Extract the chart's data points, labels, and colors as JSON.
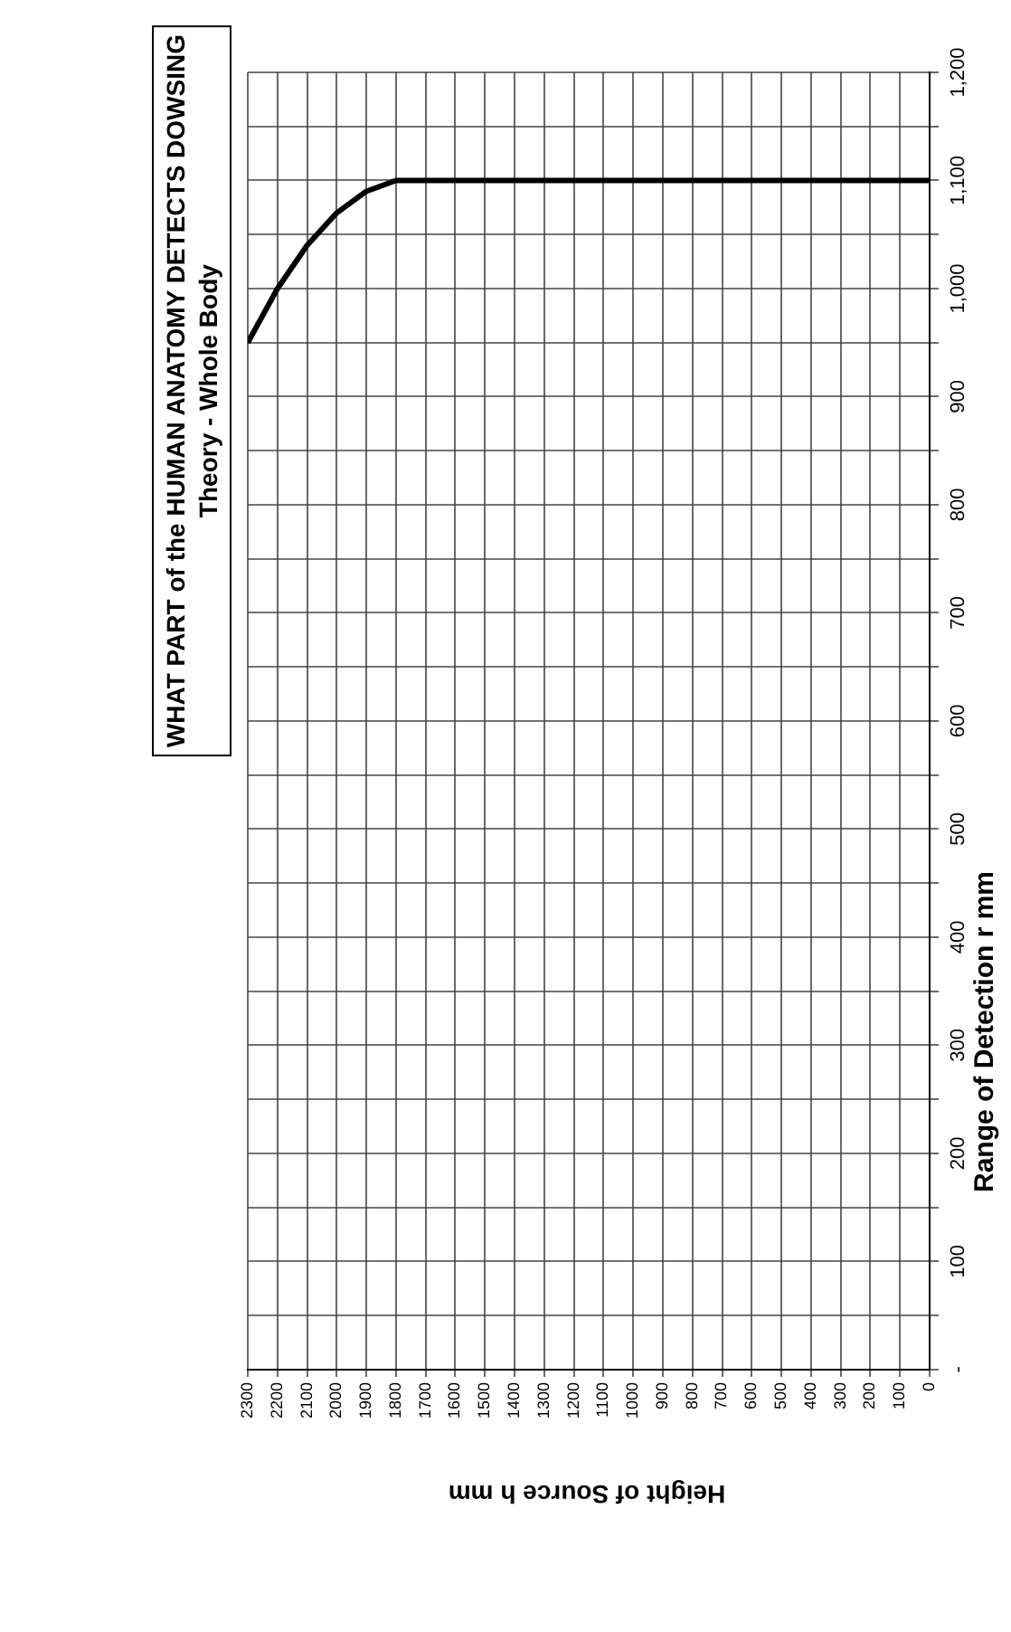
{
  "chart_data": {
    "type": "line",
    "title": "WHAT PART of the HUMAN ANATOMY DETECTS DOWSING",
    "subtitle": "Theory - Whole Body",
    "xlabel": "Height of Source h mm",
    "ylabel": "Range of Detection r mm",
    "x": [
      2300,
      2200,
      2100,
      2000,
      1900,
      1800,
      0
    ],
    "values": [
      950,
      1000,
      1040,
      1070,
      1090,
      1100,
      1100
    ],
    "color": "#000000",
    "line_style": "solid",
    "marker": "none",
    "xlim": [
      2300,
      0
    ],
    "xticks": [
      2300,
      2200,
      2100,
      2000,
      1900,
      1800,
      1700,
      1600,
      1500,
      1400,
      1300,
      1200,
      1100,
      1000,
      900,
      800,
      700,
      600,
      500,
      400,
      300,
      200,
      100,
      0
    ],
    "ylim": [
      0,
      1200
    ],
    "yticks": [
      {
        "value": 0,
        "label": "-"
      },
      {
        "value": 50,
        "label": null
      },
      100,
      {
        "value": 150,
        "label": null
      },
      200,
      {
        "value": 250,
        "label": null
      },
      300,
      {
        "value": 350,
        "label": null
      },
      400,
      {
        "value": 450,
        "label": null
      },
      500,
      {
        "value": 550,
        "label": null
      },
      600,
      {
        "value": 650,
        "label": null
      },
      700,
      {
        "value": 750,
        "label": null
      },
      800,
      {
        "value": 850,
        "label": null
      },
      900,
      {
        "value": 950,
        "label": null
      },
      {
        "value": 1000,
        "label": "1,000"
      },
      {
        "value": 1050,
        "label": null
      },
      {
        "value": 1100,
        "label": "1,100"
      },
      {
        "value": 1150,
        "label": null
      },
      {
        "value": 1200,
        "label": "1,200"
      }
    ],
    "grid": true,
    "legend": false
  }
}
